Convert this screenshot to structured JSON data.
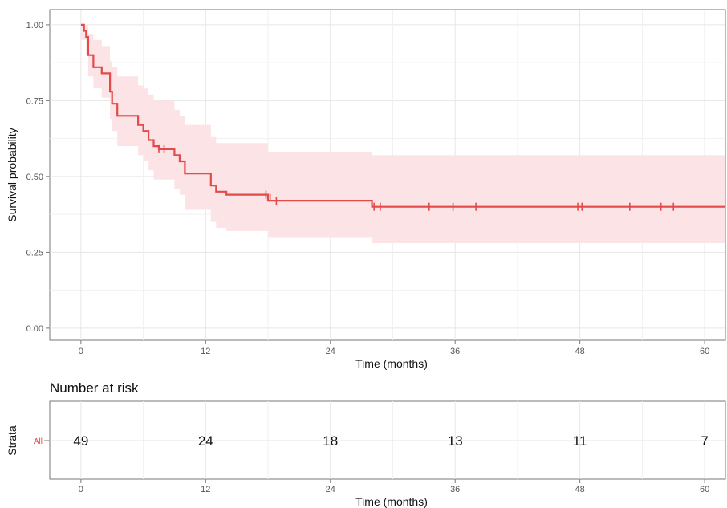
{
  "chart_data": {
    "type": "line",
    "subtype": "kaplan-meier",
    "title": "",
    "xlabel": "Time (months)",
    "ylabel": "Survival probability",
    "xlim": [
      -3,
      62
    ],
    "ylim": [
      -0.04,
      1.05
    ],
    "x_ticks": [
      0,
      12,
      24,
      36,
      48,
      60
    ],
    "y_ticks": [
      "0.00",
      "0.25",
      "0.50",
      "0.75",
      "1.00"
    ],
    "grid": true,
    "colors": {
      "curve": "#e34a4a",
      "ci_band": "#fbe3e6",
      "grid": "#e6e6e6"
    },
    "series": [
      {
        "steps": [
          [
            0,
            1.0
          ],
          [
            0.3,
            0.98
          ],
          [
            0.5,
            0.96
          ],
          [
            0.7,
            0.9
          ],
          [
            1.2,
            0.86
          ],
          [
            2.0,
            0.84
          ],
          [
            2.8,
            0.78
          ],
          [
            3.0,
            0.74
          ],
          [
            3.5,
            0.7
          ],
          [
            5.5,
            0.67
          ],
          [
            6.0,
            0.65
          ],
          [
            6.5,
            0.62
          ],
          [
            7.0,
            0.6
          ],
          [
            7.5,
            0.59
          ],
          [
            9.0,
            0.57
          ],
          [
            9.5,
            0.55
          ],
          [
            10.0,
            0.51
          ],
          [
            12.5,
            0.47
          ],
          [
            13.0,
            0.45
          ],
          [
            14.0,
            0.44
          ],
          [
            18.0,
            0.42
          ],
          [
            28.0,
            0.4
          ],
          [
            62.0,
            0.4
          ]
        ],
        "ci_lower": [
          [
            0,
            0.95
          ],
          [
            0.5,
            0.9
          ],
          [
            0.7,
            0.83
          ],
          [
            1.2,
            0.79
          ],
          [
            2.0,
            0.76
          ],
          [
            2.8,
            0.69
          ],
          [
            3.0,
            0.65
          ],
          [
            3.5,
            0.6
          ],
          [
            5.5,
            0.57
          ],
          [
            6.0,
            0.55
          ],
          [
            6.5,
            0.52
          ],
          [
            7.0,
            0.49
          ],
          [
            9.0,
            0.46
          ],
          [
            9.5,
            0.44
          ],
          [
            10.0,
            0.39
          ],
          [
            12.5,
            0.35
          ],
          [
            13.0,
            0.33
          ],
          [
            14.0,
            0.32
          ],
          [
            18.0,
            0.3
          ],
          [
            28.0,
            0.28
          ],
          [
            62.0,
            0.28
          ]
        ],
        "ci_upper": [
          [
            0,
            1.0
          ],
          [
            0.5,
            1.0
          ],
          [
            0.7,
            0.97
          ],
          [
            1.2,
            0.95
          ],
          [
            2.0,
            0.93
          ],
          [
            2.8,
            0.88
          ],
          [
            3.0,
            0.86
          ],
          [
            3.5,
            0.83
          ],
          [
            5.5,
            0.8
          ],
          [
            6.0,
            0.79
          ],
          [
            6.5,
            0.77
          ],
          [
            7.0,
            0.75
          ],
          [
            9.0,
            0.72
          ],
          [
            9.5,
            0.7
          ],
          [
            10.0,
            0.67
          ],
          [
            12.5,
            0.63
          ],
          [
            13.0,
            0.61
          ],
          [
            14.0,
            0.61
          ],
          [
            18.0,
            0.58
          ],
          [
            28.0,
            0.57
          ],
          [
            62.0,
            0.57
          ]
        ],
        "censored": [
          [
            7.5,
            0.59
          ],
          [
            8.0,
            0.59
          ],
          [
            17.8,
            0.44
          ],
          [
            18.2,
            0.43
          ],
          [
            18.8,
            0.42
          ],
          [
            28.2,
            0.4
          ],
          [
            28.8,
            0.4
          ],
          [
            33.5,
            0.4
          ],
          [
            35.8,
            0.4
          ],
          [
            38.0,
            0.4
          ],
          [
            47.8,
            0.4
          ],
          [
            48.2,
            0.4
          ],
          [
            52.8,
            0.4
          ],
          [
            55.8,
            0.4
          ],
          [
            57.0,
            0.4
          ]
        ]
      }
    ],
    "risk_table": {
      "title": "Number at risk",
      "ylabel": "Strata",
      "strata": [
        "All"
      ],
      "times": [
        0,
        12,
        24,
        36,
        48,
        60
      ],
      "counts": [
        49,
        24,
        18,
        13,
        11,
        7
      ],
      "xlabel": "Time (months)"
    }
  }
}
